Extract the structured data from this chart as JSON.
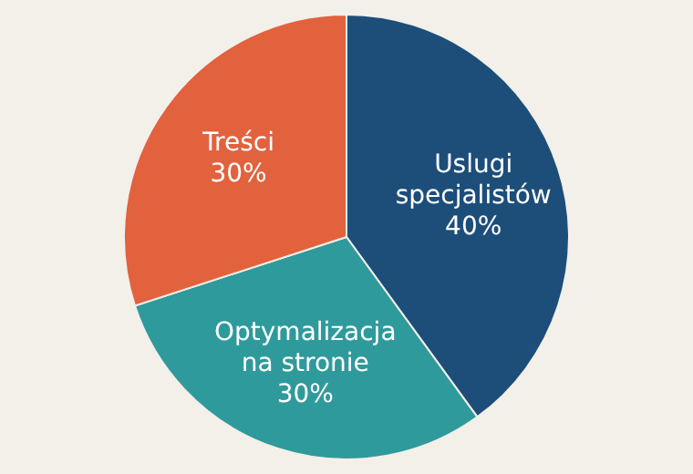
{
  "chart_data": {
    "type": "pie",
    "categories": [
      "Uslugi specjalistów",
      "Optymalizacja na stronie",
      "Treści"
    ],
    "values": [
      40,
      30,
      30
    ],
    "value_labels": [
      "40%",
      "30%",
      "30%"
    ],
    "colors": [
      "#1d4e7a",
      "#2f9a9b",
      "#e2623d"
    ],
    "legend": false
  }
}
